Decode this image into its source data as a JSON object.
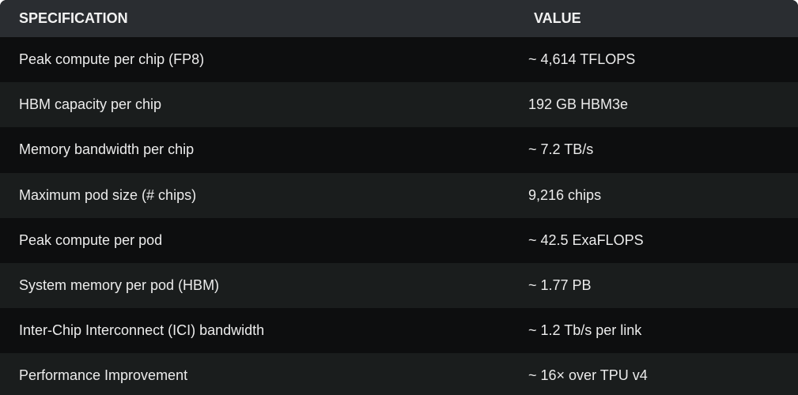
{
  "table": {
    "headers": [
      "SPECIFICATION",
      "VALUE"
    ],
    "rows": [
      [
        "Peak compute per chip (FP8)",
        "~ 4,614 TFLOPS"
      ],
      [
        "HBM capacity per chip",
        "192 GB HBM3e"
      ],
      [
        "Memory bandwidth per chip",
        "~ 7.2 TB/s"
      ],
      [
        "Maximum pod size (# chips)",
        "9,216 chips"
      ],
      [
        "Peak compute per pod",
        "~ 42.5 ExaFLOPS"
      ],
      [
        "System memory per pod (HBM)",
        "~ 1.77 PB"
      ],
      [
        "Inter-Chip Interconnect (ICI) bandwidth",
        "~ 1.2 Tb/s per link"
      ],
      [
        "Performance Improvement",
        "~ 16× over TPU v4"
      ]
    ]
  }
}
